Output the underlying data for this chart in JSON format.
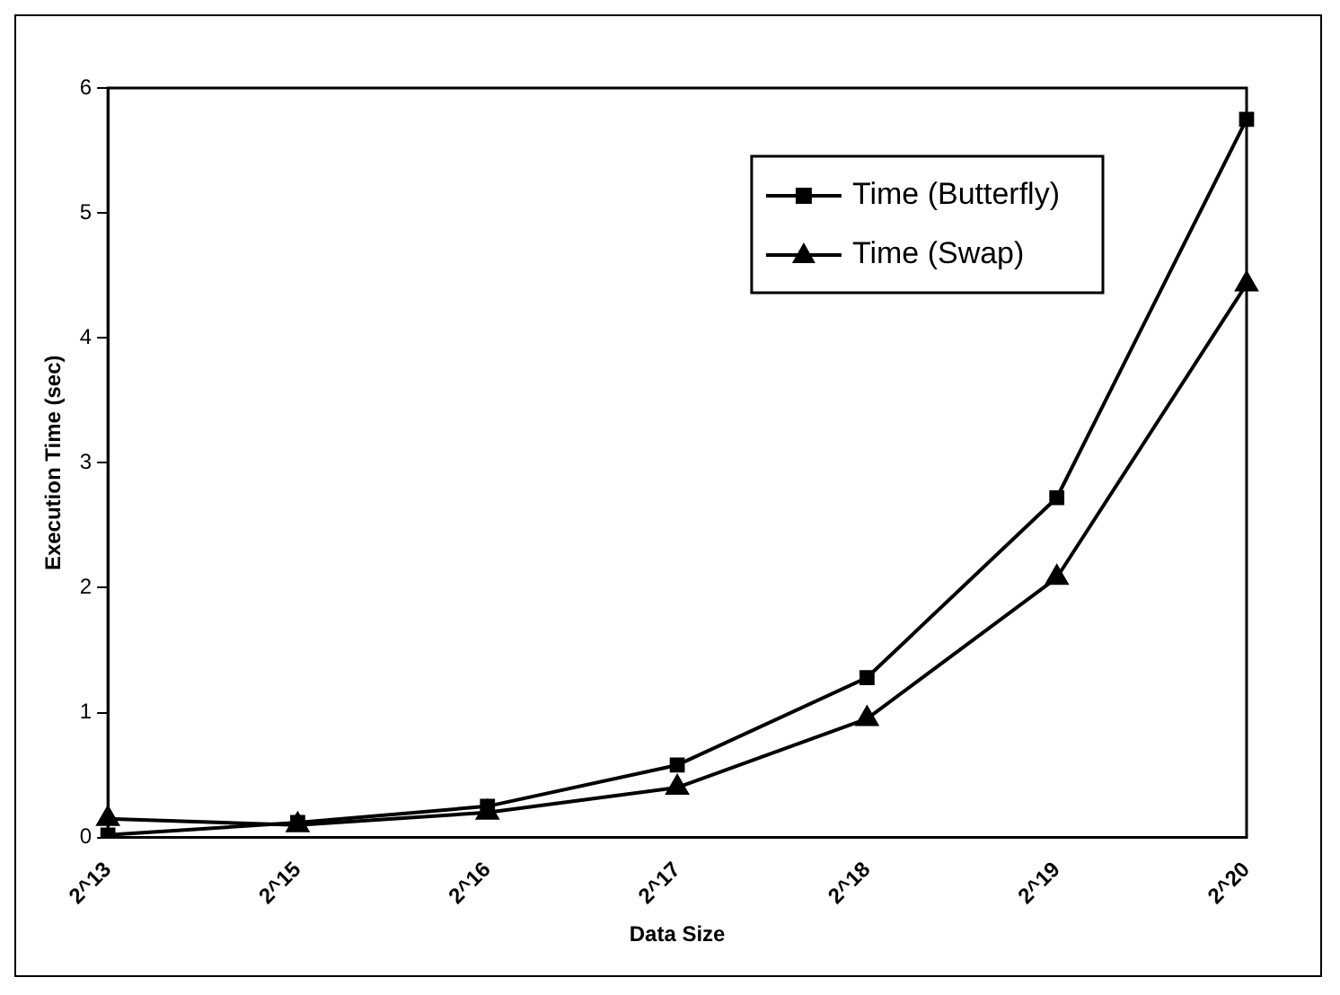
{
  "chart_data": {
    "type": "line",
    "xlabel": "Data Size",
    "ylabel": "Execution Time (sec)",
    "categories": [
      "2^13",
      "2^15",
      "2^16",
      "2^17",
      "2^18",
      "2^19",
      "2^20"
    ],
    "series": [
      {
        "name": "Time (Butterfly)",
        "color": "#000000",
        "marker": "square",
        "values": [
          0.02,
          0.12,
          0.25,
          0.58,
          1.28,
          2.72,
          5.75
        ]
      },
      {
        "name": "Time (Swap)",
        "color": "#000000",
        "marker": "triangle",
        "values": [
          0.15,
          0.1,
          0.2,
          0.4,
          0.95,
          2.08,
          4.43
        ]
      }
    ],
    "ylim": [
      0,
      6
    ],
    "yticks": [
      0,
      1,
      2,
      3,
      4,
      5,
      6
    ],
    "grid": false,
    "legend": "top right",
    "line_style": "solid"
  }
}
